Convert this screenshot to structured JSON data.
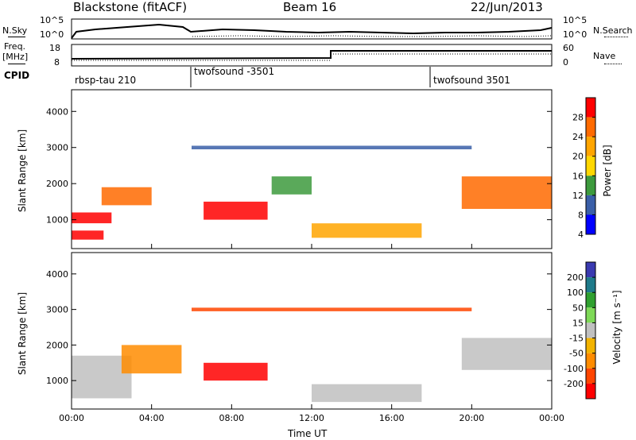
{
  "header": {
    "station": "Blackstone (fitACF)",
    "beam": "Beam 16",
    "date": "22/Jun/2013"
  },
  "sky_panel": {
    "left_label": "N.Sky",
    "right_label": "N.Search",
    "left_ticks": [
      "10^5",
      "10^0"
    ],
    "right_ticks": [
      "10^5",
      "10^0"
    ]
  },
  "freq_panel": {
    "left_label_1": "Freq.",
    "left_label_2": "[MHz]",
    "right_label": "Nave",
    "left_ticks": [
      "18",
      "8"
    ],
    "right_ticks": [
      "60",
      "0"
    ]
  },
  "cpid_panel": {
    "label": "CPID",
    "segments": [
      {
        "name": "rbsp-tau 210",
        "start_hour": 0
      },
      {
        "name": "twofsound -3501",
        "start_hour": 6
      },
      {
        "name": "twofsound 3501",
        "start_hour": 18
      }
    ]
  },
  "power_colorbar": {
    "title": "Power [dB]",
    "ticks": [
      "28",
      "24",
      "20",
      "16",
      "12",
      "8",
      "4"
    ],
    "colors": [
      "#ff0000",
      "#ff6a00",
      "#ffa500",
      "#ffd700",
      "#3d9a3d",
      "#3a5fa8",
      "#0000ff"
    ]
  },
  "velocity_colorbar": {
    "title": "Velocity [m s⁻¹]",
    "ticks": [
      "200",
      "100",
      "50",
      "15",
      "-15",
      "-50",
      "-100",
      "-200"
    ],
    "colors": [
      "#3a3ab0",
      "#1e7a8a",
      "#2fa02f",
      "#7ed957",
      "#c0c0c0",
      "#f2b300",
      "#ff8c00",
      "#ff4500",
      "#ff0000"
    ]
  },
  "chart_data": [
    {
      "type": "heatmap",
      "name": "power",
      "ylabel": "Slant Range [km]",
      "ylim": [
        200,
        4600
      ],
      "yticks": [
        "1000",
        "2000",
        "3000",
        "4000"
      ],
      "xlim": [
        0,
        24
      ],
      "regions": [
        {
          "t0": 0.0,
          "t1": 2.0,
          "r0": 900,
          "r1": 1200,
          "level": 28
        },
        {
          "t0": 0.0,
          "t1": 1.6,
          "r0": 450,
          "r1": 700,
          "level": 26
        },
        {
          "t0": 1.5,
          "t1": 4.0,
          "r0": 1400,
          "r1": 1900,
          "level": 24
        },
        {
          "t0": 6.6,
          "t1": 9.8,
          "r0": 1000,
          "r1": 1500,
          "level": 26
        },
        {
          "t0": 10.0,
          "t1": 12.0,
          "r0": 1700,
          "r1": 2200,
          "level": 12
        },
        {
          "t0": 12.0,
          "t1": 17.5,
          "r0": 500,
          "r1": 900,
          "level": 18
        },
        {
          "t0": 19.5,
          "t1": 24.0,
          "r0": 1300,
          "r1": 2200,
          "level": 22
        },
        {
          "t0": 6.0,
          "t1": 20.0,
          "r0": 2950,
          "r1": 3050,
          "level": 6
        }
      ]
    },
    {
      "type": "heatmap",
      "name": "velocity",
      "ylabel": "Slant Range [km]",
      "ylim": [
        200,
        4600
      ],
      "yticks": [
        "1000",
        "2000",
        "3000",
        "4000"
      ],
      "xlim": [
        0,
        24
      ],
      "xticks": [
        "00:00",
        "04:00",
        "08:00",
        "12:00",
        "16:00",
        "20:00",
        "00:00"
      ],
      "xlabel": "Time UT",
      "regions": [
        {
          "t0": 0.0,
          "t1": 3.0,
          "r0": 500,
          "r1": 1700,
          "level": 0
        },
        {
          "t0": 2.5,
          "t1": 5.5,
          "r0": 1200,
          "r1": 2000,
          "level": -40
        },
        {
          "t0": 6.6,
          "t1": 9.8,
          "r0": 1000,
          "r1": 1500,
          "level": -220
        },
        {
          "t0": 12.0,
          "t1": 17.5,
          "r0": 400,
          "r1": 900,
          "level": 0
        },
        {
          "t0": 19.5,
          "t1": 24.0,
          "r0": 1300,
          "r1": 2200,
          "level": 0
        },
        {
          "t0": 6.0,
          "t1": 20.0,
          "r0": 2950,
          "r1": 3050,
          "level": -80
        }
      ]
    }
  ]
}
